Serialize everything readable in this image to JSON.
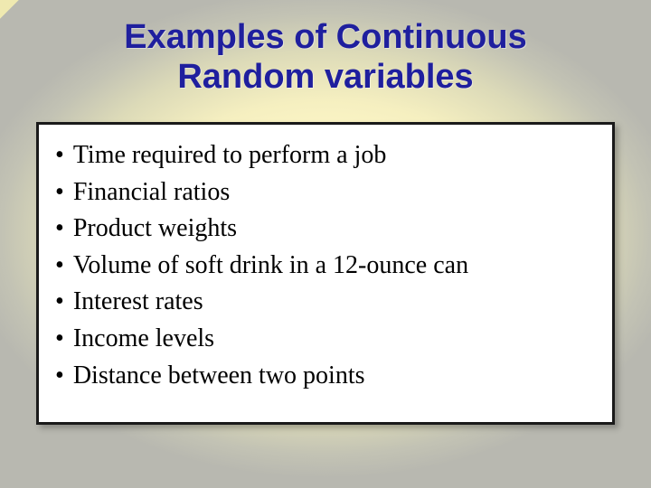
{
  "slide": {
    "title_line1": "Examples of Continuous",
    "title_line2": "Random variables",
    "title_color": "#1f1f9e",
    "title_fontsize": 38,
    "title_font": "Tahoma",
    "background": {
      "type": "radial-gradient",
      "center_color": "#fff8c8",
      "edge_color": "#b8b8b0"
    },
    "corner_stripes": [
      "#f5c843",
      "#1f3db5",
      "#d12828",
      "#efe9b0"
    ],
    "content_box": {
      "background_color": "#ffffff",
      "border_color": "#1a1a1a",
      "border_width": 3,
      "shadow": true
    },
    "bullet_char": "•",
    "bullet_font": "Times New Roman",
    "bullet_fontsize": 28,
    "bullet_color": "#000000",
    "bullets": [
      "Time required to perform a job",
      "Financial ratios",
      "Product weights",
      "Volume of soft drink in a 12-ounce can",
      "Interest rates",
      "Income levels",
      "Distance between two points"
    ]
  }
}
